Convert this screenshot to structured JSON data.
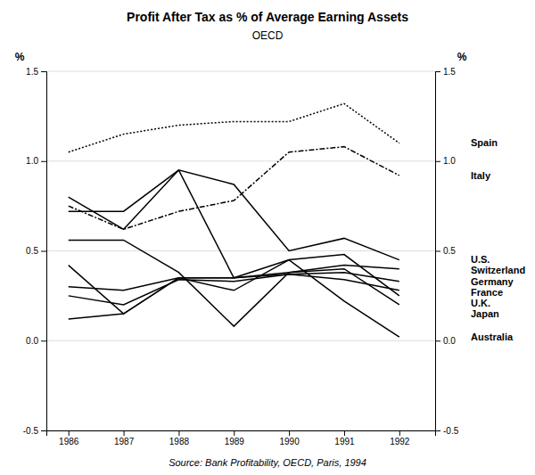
{
  "chart_data": {
    "type": "line",
    "title": "Profit After Tax as % of Average Earning Assets",
    "subtitle": "OECD",
    "y_label": "%",
    "y2_label": "%",
    "source": "Source: Bank Profitability, OECD, Paris, 1994",
    "x": [
      1986,
      1987,
      1988,
      1989,
      1990,
      1991,
      1992
    ],
    "xlim": [
      1985.6,
      1992.65
    ],
    "xticks": [
      1986,
      1987,
      1988,
      1989,
      1990,
      1991,
      1992
    ],
    "ylim": [
      -0.5,
      1.5
    ],
    "yticks": [
      -0.5,
      {
        "value": 0,
        "label": "0.0"
      },
      0.5,
      {
        "value": 1,
        "label": "1.0"
      },
      1.5
    ],
    "y2lim": [
      -0.5,
      1.5
    ],
    "y2ticks": [
      -0.5,
      {
        "value": 0,
        "label": "0.0"
      },
      0.5,
      {
        "value": 1,
        "label": "1.0"
      },
      1.5
    ],
    "grid": true,
    "series": [
      {
        "name": "Spain",
        "color": "#000000",
        "line_style": "dotted",
        "values": [
          1.05,
          1.15,
          1.2,
          1.22,
          1.22,
          1.32,
          1.1
        ]
      },
      {
        "name": "Italy",
        "color": "#000000",
        "line_style": "dashdot",
        "values": [
          0.75,
          0.62,
          0.72,
          0.78,
          1.05,
          1.08,
          0.92
        ]
      },
      {
        "name": "U.S.",
        "color": "#000000",
        "line_style": "solid",
        "values": [
          0.8,
          0.62,
          0.95,
          0.87,
          0.5,
          0.57,
          0.45
        ]
      },
      {
        "name": "Australia",
        "color": "#000000",
        "line_style": "solid",
        "values": [
          0.42,
          0.15,
          0.35,
          0.28,
          0.45,
          0.22,
          0.02
        ]
      },
      {
        "name": "Switzerland",
        "color": "#000000",
        "line_style": "solid",
        "values": [
          0.56,
          0.56,
          0.38,
          0.08,
          0.38,
          0.42,
          0.4
        ]
      },
      {
        "name": "Germany",
        "color": "#000000",
        "line_style": "solid",
        "values": [
          0.3,
          0.28,
          0.35,
          0.35,
          0.37,
          0.38,
          0.33
        ]
      },
      {
        "name": "France",
        "color": "#000000",
        "line_style": "solid",
        "values": [
          0.25,
          0.2,
          0.34,
          0.33,
          0.37,
          0.34,
          0.28
        ]
      },
      {
        "name": "U.K.",
        "color": "#000000",
        "line_style": "solid",
        "values": [
          0.72,
          0.72,
          0.95,
          0.35,
          0.45,
          0.48,
          0.25
        ]
      },
      {
        "name": "Japan",
        "color": "#000000",
        "line_style": "solid",
        "values": [
          0.12,
          0.15,
          0.35,
          0.35,
          0.38,
          0.4,
          0.2
        ]
      }
    ]
  }
}
